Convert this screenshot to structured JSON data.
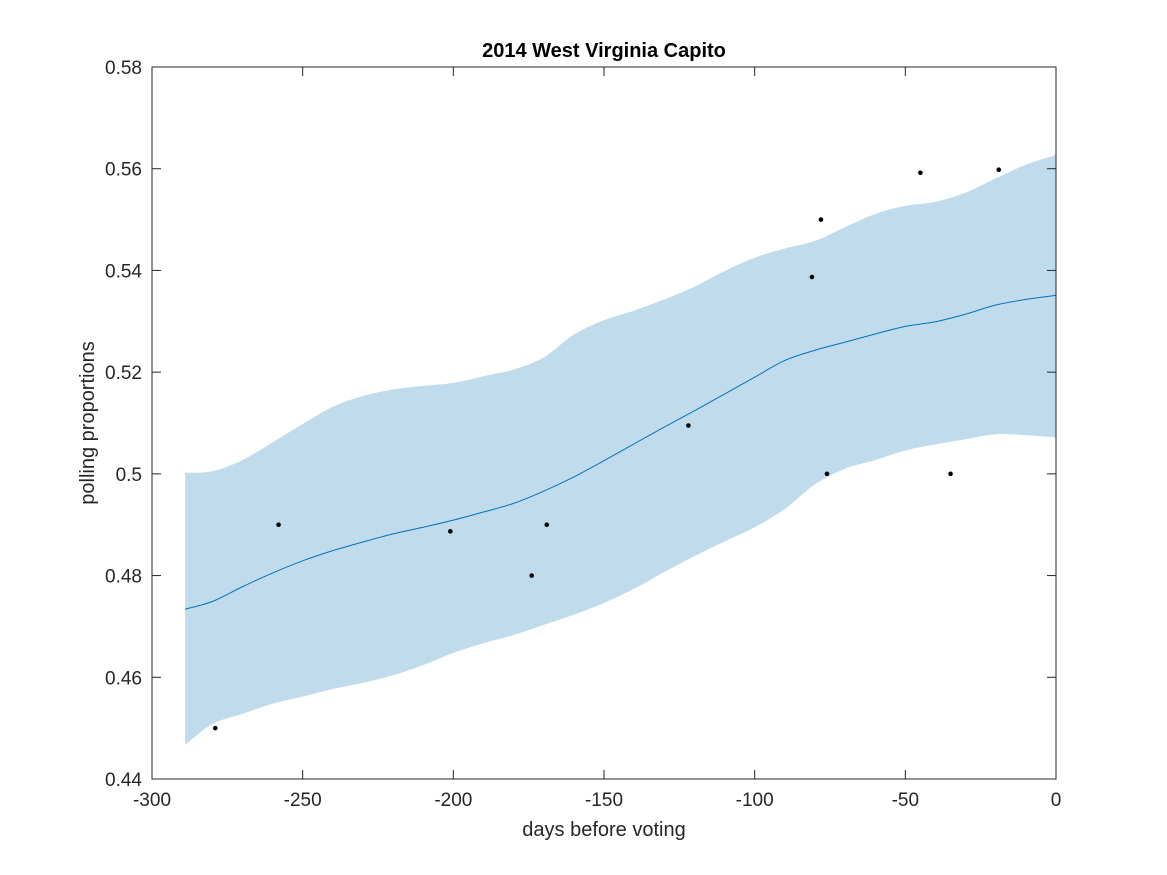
{
  "chart_data": {
    "type": "line",
    "title": "2014 West Virginia Capito",
    "xlabel": "days before voting",
    "ylabel": "polling proportions",
    "xlim": [
      -300,
      0
    ],
    "ylim": [
      0.44,
      0.58
    ],
    "xticks": [
      -300,
      -250,
      -200,
      -150,
      -100,
      -50,
      0
    ],
    "xtick_labels": [
      "-300",
      "-250",
      "-200",
      "-150",
      "-100",
      "-50",
      "0"
    ],
    "yticks": [
      0.44,
      0.46,
      0.48,
      0.5,
      0.52,
      0.54,
      0.56,
      0.58
    ],
    "ytick_labels": [
      "0.44",
      "0.46",
      "0.48",
      "0.5",
      "0.52",
      "0.54",
      "0.56",
      "0.58"
    ],
    "grid": false,
    "colors": {
      "band": "#c0dcec",
      "line": "#0072bd",
      "points": "#000000",
      "axes": "#262626"
    },
    "band": {
      "x": [
        -289,
        -280,
        -270,
        -260,
        -250,
        -240,
        -230,
        -220,
        -210,
        -200,
        -190,
        -180,
        -170,
        -160,
        -150,
        -140,
        -130,
        -120,
        -110,
        -100,
        -90,
        -80,
        -70,
        -60,
        -50,
        -40,
        -30,
        -20,
        -10,
        0
      ],
      "upper": [
        0.5002,
        0.5005,
        0.5027,
        0.5062,
        0.5098,
        0.5132,
        0.5153,
        0.5166,
        0.5173,
        0.5179,
        0.5192,
        0.5205,
        0.5229,
        0.5274,
        0.5302,
        0.5321,
        0.5343,
        0.5368,
        0.5399,
        0.5425,
        0.5443,
        0.5458,
        0.5485,
        0.5511,
        0.5527,
        0.5535,
        0.5553,
        0.5581,
        0.5608,
        0.5627
      ],
      "lower": [
        0.4467,
        0.4508,
        0.4528,
        0.4548,
        0.4562,
        0.4577,
        0.4589,
        0.4604,
        0.4624,
        0.4648,
        0.4667,
        0.4683,
        0.4703,
        0.4723,
        0.4746,
        0.4774,
        0.4807,
        0.4838,
        0.4867,
        0.4895,
        0.4931,
        0.4979,
        0.501,
        0.5027,
        0.5046,
        0.5058,
        0.5068,
        0.5078,
        0.5076,
        0.5072
      ]
    },
    "series": [
      {
        "x": [
          -289,
          -280,
          -270,
          -260,
          -250,
          -240,
          -230,
          -220,
          -210,
          -200,
          -190,
          -180,
          -170,
          -160,
          -150,
          -140,
          -130,
          -120,
          -110,
          -100,
          -90,
          -80,
          -70,
          -60,
          -50,
          -40,
          -30,
          -20,
          -10,
          0
        ],
        "values": [
          0.4734,
          0.4749,
          0.4778,
          0.4805,
          0.4829,
          0.4849,
          0.4866,
          0.4882,
          0.4895,
          0.4909,
          0.4925,
          0.4942,
          0.4966,
          0.4994,
          0.5026,
          0.5059,
          0.5092,
          0.5124,
          0.5157,
          0.519,
          0.5223,
          0.5243,
          0.5259,
          0.5275,
          0.529,
          0.5299,
          0.5314,
          0.5332,
          0.5343,
          0.5351
        ]
      }
    ],
    "points": {
      "x": [
        -279,
        -258,
        -201,
        -174,
        -169,
        -122,
        -81,
        -78,
        -76,
        -45,
        -35,
        -19
      ],
      "y": [
        0.45,
        0.49,
        0.4887,
        0.48,
        0.49,
        0.5095,
        0.5387,
        0.55,
        0.5,
        0.5592,
        0.5,
        0.5598
      ]
    }
  }
}
